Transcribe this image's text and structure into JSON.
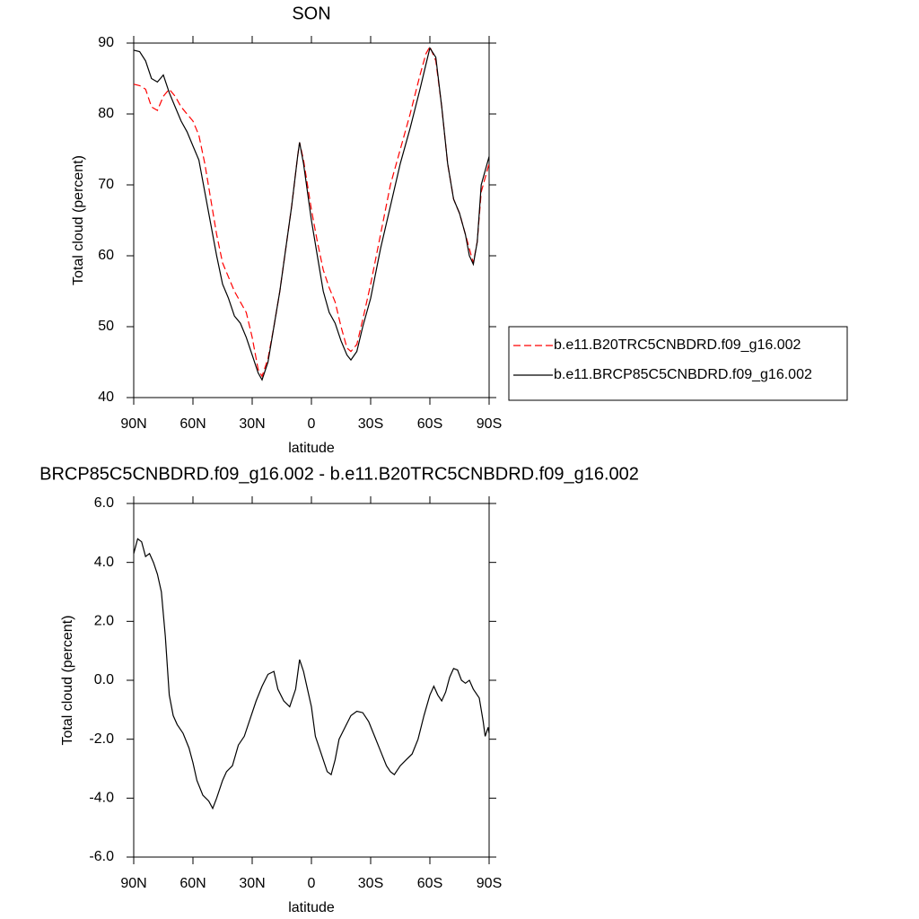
{
  "chart_data": [
    {
      "type": "line",
      "title": "SON",
      "x_label": "latitude",
      "y_label": "Total cloud (percent)",
      "xlim": [
        90,
        -90
      ],
      "ylim": [
        40,
        90
      ],
      "xticks": [
        {
          "value": 90,
          "label": "90N"
        },
        {
          "value": 60,
          "label": "60N"
        },
        {
          "value": 30,
          "label": "30N"
        },
        0,
        {
          "value": -30,
          "label": "30S"
        },
        {
          "value": -60,
          "label": "60S"
        },
        {
          "value": -90,
          "label": "90S"
        }
      ],
      "yticks": [
        40,
        50,
        60,
        70,
        80,
        90
      ],
      "legend": "right",
      "x": [
        90,
        87,
        84,
        81,
        78,
        75,
        72,
        69,
        66,
        63,
        60,
        57,
        54,
        51,
        48,
        45,
        42,
        39,
        36,
        33,
        30,
        27,
        25,
        22,
        19,
        16,
        13,
        10,
        7,
        6,
        4,
        2,
        0,
        -3,
        -6,
        -9,
        -12,
        -15,
        -18,
        -20,
        -23,
        -26,
        -30,
        -35,
        -40,
        -45,
        -50,
        -55,
        -58,
        -60,
        -63,
        -66,
        -69,
        -72,
        -75,
        -78,
        -80,
        -82,
        -84,
        -86,
        -90
      ],
      "series": [
        {
          "name": "b.e11.B20TRC5CNBDRD.f09_g16.002",
          "color": "#ff0000",
          "style": "dashed",
          "values": [
            84.2,
            84,
            83.5,
            81,
            80.5,
            82.5,
            83.5,
            82.5,
            81,
            80,
            79,
            77,
            73,
            68,
            63,
            59,
            57,
            55,
            53.5,
            52,
            48.5,
            44,
            43,
            45.5,
            50,
            55,
            61,
            67,
            74,
            76,
            73.5,
            70,
            66.5,
            62,
            58,
            55.5,
            53.5,
            50,
            47,
            46.5,
            47.5,
            51,
            56,
            63,
            70,
            75,
            80,
            85.5,
            88.5,
            89.5,
            87.5,
            81,
            73,
            68,
            66,
            63,
            61,
            59,
            62,
            69,
            73
          ]
        },
        {
          "name": "b.e11.BRCP85C5CNBDRD.f09_g16.002",
          "color": "#000000",
          "style": "solid",
          "values": [
            89,
            88.8,
            87.5,
            85,
            84.5,
            85.5,
            83,
            81,
            79,
            77.5,
            75.5,
            73.5,
            69,
            64.5,
            60,
            56,
            54,
            51.5,
            50.5,
            48.5,
            46,
            43.5,
            42.5,
            45,
            50,
            55,
            61,
            67,
            74,
            76,
            73,
            69,
            65,
            60,
            55,
            52,
            50.5,
            48,
            46,
            45.3,
            46.5,
            50,
            54,
            61,
            67,
            73,
            78,
            83.5,
            87,
            89.3,
            88,
            81,
            73,
            68,
            66,
            63,
            60,
            58.8,
            62,
            70,
            74
          ]
        }
      ]
    },
    {
      "type": "line",
      "title": "BRCP85C5CNBDRD.f09_g16.002 - b.e11.B20TRC5CNBDRD.f09_g16.002",
      "x_label": "latitude",
      "y_label": "Total cloud (percent)",
      "xlim": [
        90,
        -90
      ],
      "ylim": [
        -6,
        6
      ],
      "xticks": [
        {
          "value": 90,
          "label": "90N"
        },
        {
          "value": 60,
          "label": "60N"
        },
        {
          "value": 30,
          "label": "30N"
        },
        0,
        {
          "value": -30,
          "label": "30S"
        },
        {
          "value": -60,
          "label": "60S"
        },
        {
          "value": -90,
          "label": "90S"
        }
      ],
      "yticks": [
        {
          "value": -6,
          "label": "-6.0"
        },
        {
          "value": -4,
          "label": "-4.0"
        },
        {
          "value": -2,
          "label": "-2.0"
        },
        {
          "value": 0,
          "label": "0.0"
        },
        {
          "value": 2,
          "label": "2.0"
        },
        {
          "value": 4,
          "label": "4.0"
        },
        {
          "value": 6,
          "label": "6.0"
        }
      ],
      "x": [
        90,
        88,
        86,
        84,
        82,
        80,
        78,
        76,
        74,
        72,
        70,
        68,
        65,
        62,
        60,
        58,
        55,
        52,
        50,
        48,
        45,
        43,
        40,
        37,
        34,
        31,
        28,
        25,
        22,
        19,
        17,
        14,
        11,
        8,
        6,
        4,
        2,
        0,
        -2,
        -5,
        -8,
        -10,
        -12,
        -14,
        -17,
        -20,
        -23,
        -26,
        -29,
        -32,
        -35,
        -38,
        -40,
        -42,
        -45,
        -48,
        -51,
        -54,
        -57,
        -60,
        -62,
        -64,
        -66,
        -68,
        -70,
        -72,
        -74,
        -76,
        -78,
        -80,
        -82,
        -85,
        -87,
        -88,
        -89.5,
        -90
      ],
      "series": [
        {
          "color": "#000000",
          "style": "solid",
          "values": [
            4.3,
            4.8,
            4.7,
            4.2,
            4.3,
            4.0,
            3.6,
            3.0,
            1.5,
            -0.5,
            -1.2,
            -1.5,
            -1.8,
            -2.3,
            -2.8,
            -3.4,
            -3.9,
            -4.1,
            -4.35,
            -4.0,
            -3.4,
            -3.1,
            -2.9,
            -2.2,
            -1.9,
            -1.3,
            -0.7,
            -0.2,
            0.2,
            0.3,
            -0.3,
            -0.7,
            -0.9,
            -0.3,
            0.7,
            0.3,
            -0.3,
            -0.9,
            -1.9,
            -2.5,
            -3.1,
            -3.2,
            -2.7,
            -2.0,
            -1.6,
            -1.2,
            -1.05,
            -1.1,
            -1.4,
            -1.9,
            -2.4,
            -2.9,
            -3.1,
            -3.2,
            -2.9,
            -2.7,
            -2.5,
            -2.0,
            -1.2,
            -0.5,
            -0.2,
            -0.5,
            -0.7,
            -0.4,
            0.1,
            0.4,
            0.35,
            0.0,
            -0.1,
            0.0,
            -0.3,
            -0.6,
            -1.4,
            -1.9,
            -1.6,
            -1.8
          ]
        }
      ]
    }
  ]
}
